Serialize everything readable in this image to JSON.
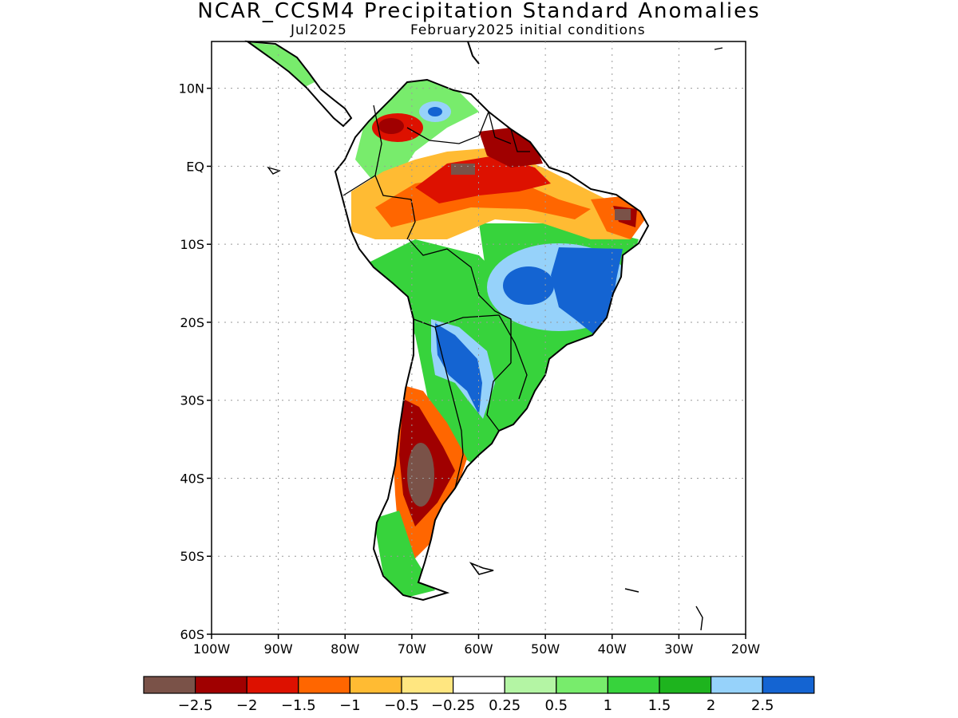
{
  "title": "NCAR_CCSM4 Precipitation Standard Anomalies",
  "subtitle_left": "Jul2025",
  "subtitle_right": "February2025 initial conditions",
  "axes": {
    "lat_ticks": [
      "10N",
      "EQ",
      "10S",
      "20S",
      "30S",
      "40S",
      "50S",
      "60S"
    ],
    "lon_ticks": [
      "100W",
      "90W",
      "80W",
      "70W",
      "60W",
      "50W",
      "40W",
      "30W",
      "20W"
    ],
    "lat_range": [
      -60,
      16
    ],
    "lon_range": [
      -100,
      -20
    ],
    "grid": "dotted"
  },
  "colorbar": {
    "colors": [
      "#7a5248",
      "#a00000",
      "#dd1100",
      "#ff6600",
      "#ffbb33",
      "#ffe680",
      "#ffffff",
      "#b4f5a4",
      "#78ec6c",
      "#37d33c",
      "#1eb41e",
      "#96d2fa",
      "#1464d2"
    ],
    "labels": [
      "−2.5",
      "−2",
      "−1.5",
      "−1",
      "−0.5",
      "−0.25",
      "0.25",
      "0.5",
      "1",
      "1.5",
      "2",
      "2.5"
    ]
  }
}
